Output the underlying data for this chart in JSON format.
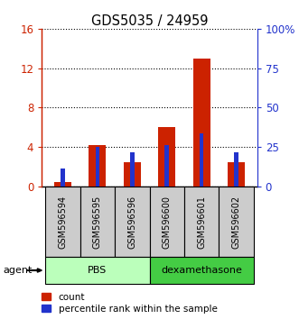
{
  "title": "GDS5035 / 24959",
  "samples": [
    "GSM596594",
    "GSM596595",
    "GSM596596",
    "GSM596600",
    "GSM596601",
    "GSM596602"
  ],
  "count_values": [
    0.5,
    4.2,
    2.5,
    6.0,
    13.0,
    2.5
  ],
  "percentile_values": [
    11.5,
    25.0,
    21.5,
    26.5,
    34.0,
    22.0
  ],
  "ylim_left": [
    0,
    16
  ],
  "ylim_right": [
    0,
    100
  ],
  "yticks_left": [
    0,
    4,
    8,
    12,
    16
  ],
  "ytick_labels_left": [
    "0",
    "4",
    "8",
    "12",
    "16"
  ],
  "yticks_right": [
    0,
    25,
    50,
    75,
    100
  ],
  "ytick_labels_right": [
    "0",
    "25",
    "50",
    "75",
    "100%"
  ],
  "groups": [
    {
      "label": "PBS",
      "start": 0,
      "end": 3,
      "color": "#bbffbb"
    },
    {
      "label": "dexamethasone",
      "start": 3,
      "end": 6,
      "color": "#44cc44"
    }
  ],
  "agent_label": "agent",
  "bar_color_red": "#cc2200",
  "bar_color_blue": "#2233cc",
  "legend_labels": [
    "count",
    "percentile rank within the sample"
  ],
  "left_axis_color": "#cc2200",
  "right_axis_color": "#2233cc",
  "bar_width": 0.5,
  "blue_bar_width": 0.12,
  "sample_box_color": "#cccccc"
}
